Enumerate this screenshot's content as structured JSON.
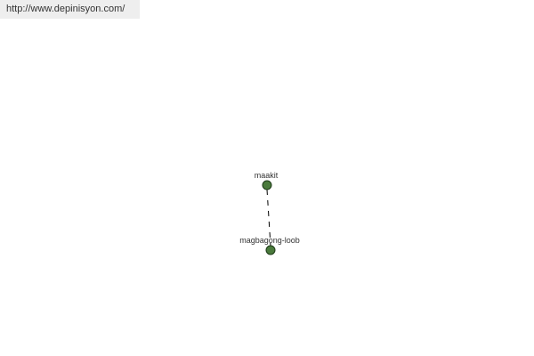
{
  "url": "http://www.depinisyon.com/",
  "graph": {
    "nodes": [
      {
        "label": "maakit",
        "color": "#4a7a3c"
      },
      {
        "label": "magbagong-loob",
        "color": "#4a7a3c"
      }
    ]
  }
}
